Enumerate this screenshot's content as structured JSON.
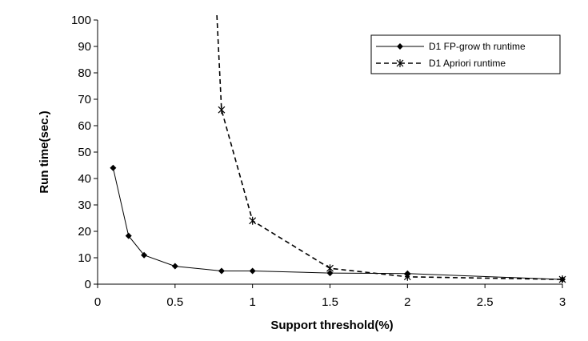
{
  "chart_data": {
    "type": "line",
    "title": "",
    "xlabel": "Support threshold(%)",
    "ylabel": "Run time(sec.)",
    "xlim": [
      0,
      3
    ],
    "ylim": [
      0,
      100
    ],
    "x_ticks": [
      0,
      0.5,
      1,
      1.5,
      2,
      2.5,
      3
    ],
    "x_tick_labels": [
      "0",
      "0.5",
      "1",
      "1.5",
      "2",
      "2.5",
      "3"
    ],
    "y_ticks": [
      0,
      10,
      20,
      30,
      40,
      50,
      60,
      70,
      80,
      90,
      100
    ],
    "y_tick_labels": [
      "0",
      "10",
      "20",
      "30",
      "40",
      "50",
      "60",
      "70",
      "80",
      "90",
      "100"
    ],
    "grid": false,
    "legend_position": "top-right",
    "series": [
      {
        "name": "D1 FP-grow th runtime",
        "style": "solid",
        "marker": "diamond",
        "color": "#000000",
        "x": [
          0.1,
          0.2,
          0.3,
          0.5,
          0.8,
          1.0,
          1.5,
          2.0,
          3.0
        ],
        "y": [
          44,
          18.3,
          11,
          6.8,
          5,
          5,
          4.2,
          4,
          1.8
        ]
      },
      {
        "name": "D1 Apriori runtime",
        "style": "dashed",
        "marker": "asterisk",
        "color": "#000000",
        "x": [
          0.77,
          0.8,
          1.0,
          1.5,
          2.0,
          3.0
        ],
        "y": [
          102,
          66,
          24,
          6,
          2.8,
          1.8
        ],
        "marked": [
          false,
          true,
          true,
          true,
          true,
          true
        ]
      }
    ]
  }
}
